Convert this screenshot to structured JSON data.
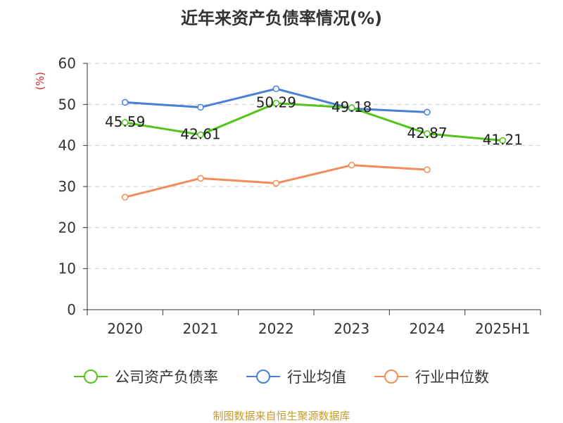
{
  "chart_data": {
    "type": "line",
    "title": "近年来资产负债率情况(%)",
    "ylabel": "(%)",
    "xlabel": "",
    "categories": [
      "2020",
      "2021",
      "2022",
      "2023",
      "2024",
      "2025H1"
    ],
    "ylim": [
      0,
      60
    ],
    "yticks": [
      0,
      10,
      20,
      30,
      40,
      50,
      60
    ],
    "grid": true,
    "legend_position": "bottom",
    "series": [
      {
        "name": "公司资产负债率",
        "color": "#52c41a",
        "values": [
          45.59,
          42.61,
          50.29,
          49.18,
          42.87,
          41.21
        ],
        "labels": [
          "45.59",
          "42.61",
          "50.29",
          "49.18",
          "42.87",
          "41.21"
        ]
      },
      {
        "name": "行业均值",
        "color": "#4a7fd6",
        "values": [
          50.5,
          49.3,
          53.8,
          49.0,
          48.1,
          null
        ]
      },
      {
        "name": "行业中位数",
        "color": "#f28c5a",
        "values": [
          27.4,
          32.0,
          30.8,
          35.2,
          34.1,
          null
        ]
      }
    ]
  },
  "footer": {
    "source": "制图数据来自恒生聚源数据库"
  }
}
